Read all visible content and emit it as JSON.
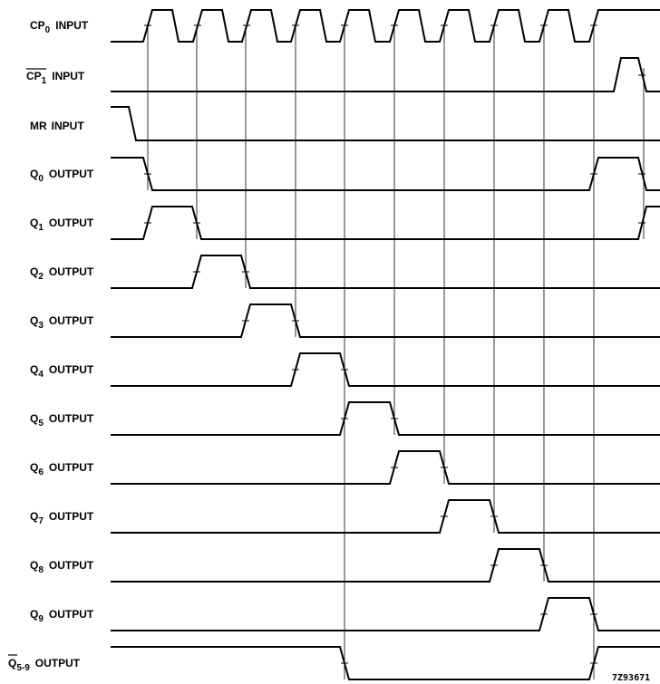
{
  "figure_id": "7Z93671",
  "signals": [
    {
      "id": "cp0",
      "base": "CP",
      "sub": "0",
      "overline": false,
      "suffix": "INPUT",
      "label": "CP0 INPUT"
    },
    {
      "id": "cp1",
      "base": "CP",
      "sub": "1",
      "overline": true,
      "suffix": "INPUT",
      "label": "CP1 INPUT (active LOW)"
    },
    {
      "id": "mr",
      "base": "MR",
      "sub": "",
      "overline": false,
      "suffix": "INPUT",
      "label": "MR INPUT"
    },
    {
      "id": "q0",
      "base": "Q",
      "sub": "0",
      "overline": false,
      "suffix": "OUTPUT",
      "label": "Q0 OUTPUT"
    },
    {
      "id": "q1",
      "base": "Q",
      "sub": "1",
      "overline": false,
      "suffix": "OUTPUT",
      "label": "Q1 OUTPUT"
    },
    {
      "id": "q2",
      "base": "Q",
      "sub": "2",
      "overline": false,
      "suffix": "OUTPUT",
      "label": "Q2 OUTPUT"
    },
    {
      "id": "q3",
      "base": "Q",
      "sub": "3",
      "overline": false,
      "suffix": "OUTPUT",
      "label": "Q3 OUTPUT"
    },
    {
      "id": "q4",
      "base": "Q",
      "sub": "4",
      "overline": false,
      "suffix": "OUTPUT",
      "label": "Q4 OUTPUT"
    },
    {
      "id": "q5",
      "base": "Q",
      "sub": "5",
      "overline": false,
      "suffix": "OUTPUT",
      "label": "Q5 OUTPUT"
    },
    {
      "id": "q6",
      "base": "Q",
      "sub": "6",
      "overline": false,
      "suffix": "OUTPUT",
      "label": "Q6 OUTPUT"
    },
    {
      "id": "q7",
      "base": "Q",
      "sub": "7",
      "overline": false,
      "suffix": "OUTPUT",
      "label": "Q7 OUTPUT"
    },
    {
      "id": "q8",
      "base": "Q",
      "sub": "8",
      "overline": false,
      "suffix": "OUTPUT",
      "label": "Q8 OUTPUT"
    },
    {
      "id": "q9",
      "base": "Q",
      "sub": "9",
      "overline": false,
      "suffix": "OUTPUT",
      "label": "Q9 OUTPUT"
    },
    {
      "id": "q59",
      "base": "Q",
      "sub": "5-9",
      "overline": true,
      "suffix": "OUTPUT",
      "label": "Q5-9 OUTPUT (active LOW)"
    }
  ],
  "colors": {
    "background": "#ffffff",
    "ink": "#000000"
  }
}
